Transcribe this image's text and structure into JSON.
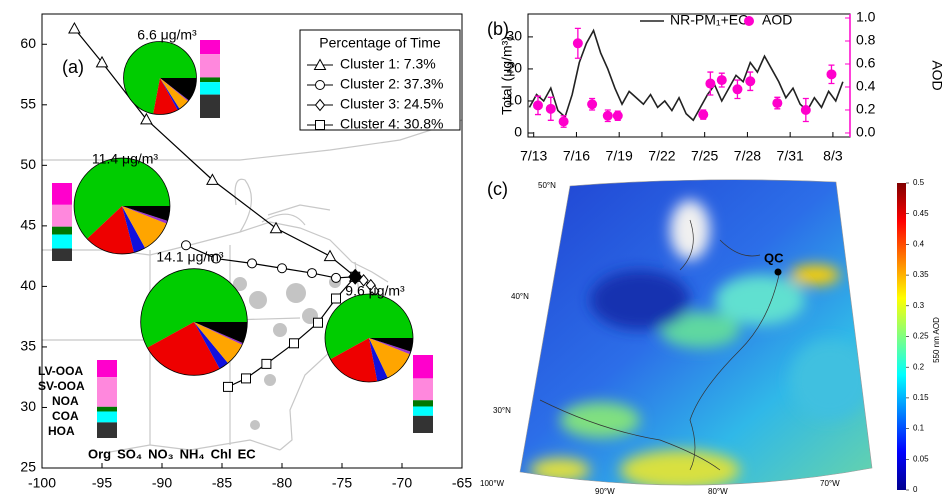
{
  "chart_data": [
    {
      "type": "trajectory-map",
      "panel_label": "(a)",
      "xlim": [
        -100,
        -65
      ],
      "xticks": [
        -100,
        -95,
        -90,
        -85,
        -80,
        -75,
        -70,
        -65
      ],
      "ylim": [
        25,
        62.5
      ],
      "yticks": [
        25,
        30,
        35,
        40,
        45,
        50,
        55,
        60
      ],
      "legend_title": "Percentage of Time",
      "series": [
        {
          "name": "Cluster 1: 7.3%",
          "marker": "triangle",
          "x": [
            -97.3,
            -95,
            -91.3,
            -85.8,
            -80.5,
            -76,
            -73.9
          ],
          "y": [
            61.3,
            58.5,
            53.8,
            48.8,
            44.8,
            42.5,
            40.8
          ]
        },
        {
          "name": "Cluster 2: 37.3%",
          "marker": "circle",
          "x": [
            -88,
            -85.5,
            -82.5,
            -80,
            -77.5,
            -75.5,
            -73.9
          ],
          "y": [
            43.4,
            42.3,
            41.9,
            41.5,
            41.1,
            40.7,
            40.8
          ]
        },
        {
          "name": "Cluster 3: 24.5%",
          "marker": "diamond",
          "x": [
            -73.9,
            -73.2,
            -72.6,
            -72.3,
            -72.5,
            -72.9,
            -73.3
          ],
          "y": [
            40.8,
            40.5,
            40.1,
            39.6,
            39.1,
            38.6,
            38.1
          ]
        },
        {
          "name": "Cluster 4: 30.8%",
          "marker": "square",
          "x": [
            -84.5,
            -83,
            -81.3,
            -79,
            -77,
            -75.5,
            -73.9
          ],
          "y": [
            31.7,
            32.4,
            33.6,
            35.3,
            37,
            39,
            40.8
          ]
        }
      ],
      "pie_components": [
        "Org",
        "SO₄",
        "NO₃",
        "NH₄",
        "Chl",
        "EC"
      ],
      "pie_colors": [
        "#00cc00",
        "#ee0000",
        "#1010dd",
        "#ffa500",
        "#9933cc",
        "#000000"
      ],
      "pies": [
        {
          "label": "6.6 μg/m³",
          "total": 6.6,
          "values": [
            72,
            11,
            1,
            5,
            0.5,
            10.5
          ]
        },
        {
          "label": "11.4 μg/m³",
          "total": 11.4,
          "values": [
            62,
            17,
            4,
            11,
            1,
            5
          ]
        },
        {
          "label": "14.1 μg/m³",
          "total": 14.1,
          "values": [
            58,
            25,
            3,
            7,
            0.5,
            6.5
          ]
        },
        {
          "label": "9.6 μg/m³",
          "total": 9.6,
          "values": [
            58,
            20,
            4,
            12,
            1,
            5
          ]
        }
      ],
      "factors": [
        "LV-OOA",
        "SV-OOA",
        "NOA",
        "COA",
        "HOA"
      ],
      "factor_colors": [
        "#ff00cc",
        "#ff88dd",
        "#007700",
        "#00ffff",
        "#333333"
      ],
      "factor_values": [
        [
          18,
          30,
          6,
          16,
          30
        ],
        [
          28,
          28,
          10,
          18,
          16
        ],
        [
          22,
          38,
          6,
          14,
          20
        ],
        [
          30,
          28,
          8,
          12,
          22
        ]
      ]
    },
    {
      "type": "time-series",
      "panel_label": "(b)",
      "y_label": "Total (μg/m³)",
      "y2_label": "AOD",
      "xlim": [
        12.6,
        35.2
      ],
      "xticks": [
        {
          "value": 13,
          "label": "7/13"
        },
        {
          "value": 16,
          "label": "7/16"
        },
        {
          "value": 19,
          "label": "7/19"
        },
        {
          "value": 22,
          "label": "7/22"
        },
        {
          "value": 25,
          "label": "7/25"
        },
        {
          "value": 28,
          "label": "7/28"
        },
        {
          "value": 31,
          "label": "7/31"
        },
        {
          "value": 34,
          "label": "8/3"
        }
      ],
      "ylim": [
        -1.25,
        35.9
      ],
      "yticks": [
        0,
        10,
        20,
        30
      ],
      "y2lim": [
        -0.035,
        1.0
      ],
      "y2ticks": [
        {
          "value": 0,
          "label": "0.0"
        },
        0.2,
        0.4,
        0.6,
        0.8,
        {
          "value": 1,
          "label": "1.0"
        }
      ],
      "y2_color": "#ff00cc",
      "series": [
        {
          "name": "NR-PM₁+EC",
          "color": "#222222",
          "x": [
            12.7,
            13.2,
            13.7,
            14.2,
            14.7,
            15.2,
            15.7,
            16.2,
            16.7,
            17.2,
            17.7,
            18.2,
            18.7,
            19.2,
            19.7,
            20.2,
            20.7,
            21.2,
            21.7,
            22.2,
            22.7,
            23.2,
            23.7,
            24.2,
            24.7,
            25.2,
            25.7,
            26.2,
            26.7,
            27.2,
            27.7,
            28.2,
            28.7,
            29.2,
            29.7,
            30.2,
            30.7,
            31.2,
            31.7,
            32.2,
            32.7,
            33.2,
            33.7,
            34.2,
            34.7
          ],
          "values": [
            8,
            12,
            10,
            14,
            7,
            5,
            12,
            22,
            28,
            32,
            25,
            20,
            14,
            9,
            13,
            11,
            9,
            12,
            8,
            10,
            7,
            11,
            6,
            4,
            8,
            12,
            15,
            10,
            14,
            18,
            16,
            22,
            19,
            24,
            20,
            16,
            11,
            14,
            9,
            7,
            11,
            8,
            13,
            10,
            16
          ]
        },
        {
          "name": "AOD",
          "color": "#ff00cc",
          "axis": "y2",
          "x": [
            13.3,
            14.2,
            15.1,
            16.1,
            17.1,
            18.2,
            18.9,
            24.9,
            25.4,
            26.2,
            27.3,
            28.2,
            30.1,
            32.1,
            33.9
          ],
          "values": [
            0.24,
            0.21,
            0.1,
            0.78,
            0.25,
            0.15,
            0.15,
            0.16,
            0.43,
            0.46,
            0.38,
            0.45,
            0.26,
            0.2,
            0.51
          ],
          "errors": [
            0.08,
            0.1,
            0.05,
            0.13,
            0.05,
            0.05,
            0.04,
            0.04,
            0.1,
            0.06,
            0.08,
            0.08,
            0.05,
            0.1,
            0.08
          ]
        }
      ]
    },
    {
      "type": "aod-map",
      "panel_label": "(c)",
      "colorbar_label": "550 nm AOD",
      "clim": [
        0,
        0.5
      ],
      "cticks": [
        0,
        0.05,
        0.1,
        0.15,
        0.2,
        0.25,
        0.3,
        0.35,
        0.4,
        0.45,
        0.5
      ],
      "colormap": [
        "#00008f",
        "#0000ff",
        "#0080ff",
        "#00ffff",
        "#80ff80",
        "#ffff00",
        "#ff8000",
        "#ff0000",
        "#800000"
      ],
      "lat_labels": [
        "50°N",
        "40°N",
        "30°N"
      ],
      "lon_labels": [
        "100°W",
        "90°W",
        "80°W",
        "70°W"
      ],
      "site_label": "QC"
    }
  ]
}
